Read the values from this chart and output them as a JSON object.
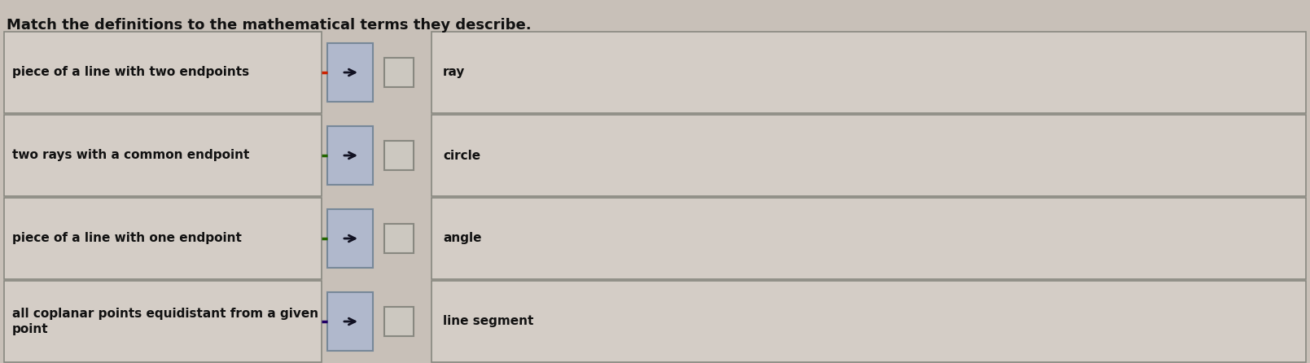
{
  "title": "Match the definitions to the mathematical terms they describe.",
  "title_fontsize": 13,
  "background_color": "#c8c0b8",
  "left_items": [
    "piece of a line with two endpoints",
    "two rays with a common endpoint",
    "piece of a line with one endpoint",
    "all coplanar points equidistant from a given\npoint"
  ],
  "right_items": [
    "ray",
    "circle",
    "angle",
    "line segment"
  ],
  "arrow_line_colors": [
    "#cc2200",
    "#226600",
    "#226600",
    "#220066"
  ],
  "box_bg": "#d8d0c8",
  "box_border": "#888880",
  "arrow_btn_color": "#aab0c0",
  "small_box_color": "#d8d0c8"
}
